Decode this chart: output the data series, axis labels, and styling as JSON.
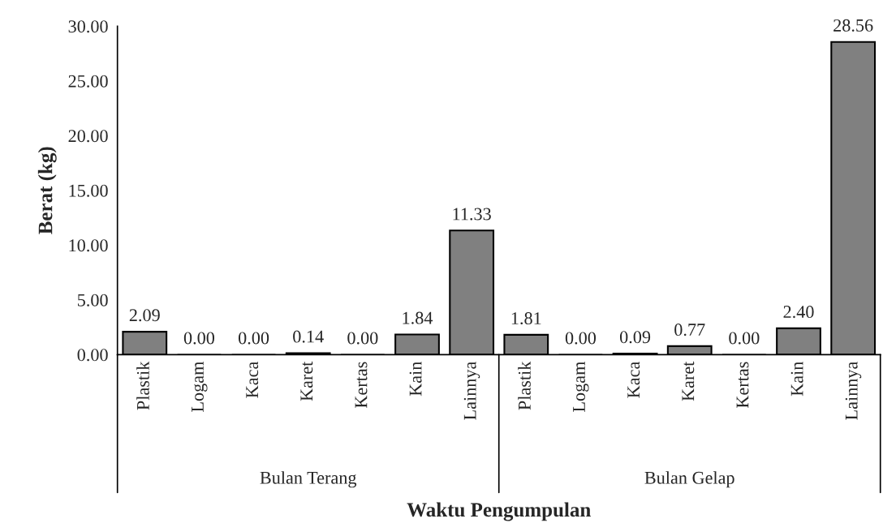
{
  "chart_data": {
    "type": "bar",
    "xlabel": "Waktu Pengumpulan",
    "ylabel": "Berat (kg)",
    "categories": [
      "Plastik",
      "Logam",
      "Kaca",
      "Karet",
      "Kertas",
      "Kain",
      "Lainnya",
      "Plastik",
      "Logam",
      "Kaca",
      "Karet",
      "Kertas",
      "Kain",
      "Lainnya"
    ],
    "values": [
      2.09,
      0.0,
      0.0,
      0.14,
      0.0,
      1.84,
      11.33,
      1.81,
      0.0,
      0.09,
      0.77,
      0.0,
      2.4,
      28.56
    ],
    "value_labels": [
      "2.09",
      "0.00",
      "0.00",
      "0.14",
      "0.00",
      "1.84",
      "11.33",
      "1.81",
      "0.00",
      "0.09",
      "0.77",
      "0.00",
      "2.40",
      "28.56"
    ],
    "color": "#808080",
    "ylim": [
      0,
      30
    ],
    "yticks": [
      {
        "value": 0,
        "label": "0.00"
      },
      {
        "value": 5,
        "label": "5.00"
      },
      {
        "value": 10,
        "label": "10.00"
      },
      {
        "value": 15,
        "label": "15.00"
      },
      {
        "value": 20,
        "label": "20.00"
      },
      {
        "value": 25,
        "label": "25.00"
      },
      {
        "value": 30,
        "label": "30.00"
      }
    ],
    "annotations": [
      "Bulan Terang",
      "Bulan Gelap"
    ],
    "grid": false,
    "legend": false
  }
}
